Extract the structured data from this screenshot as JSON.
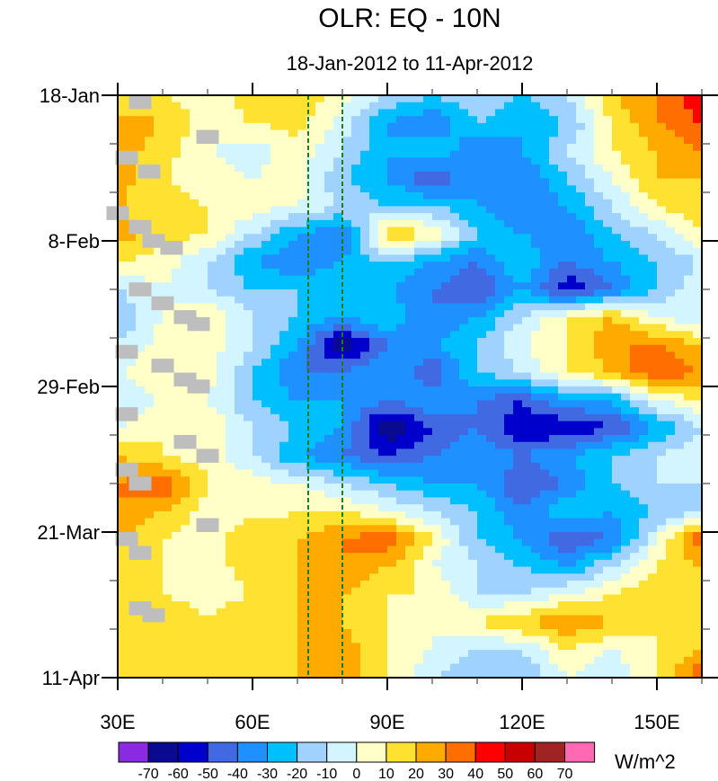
{
  "chart_data": {
    "type": "heatmap",
    "title": "OLR: EQ - 10N",
    "subtitle": "18-Jan-2012 to 11-Apr-2012",
    "units": "W/m^2",
    "x_range": [
      30,
      160
    ],
    "y_range_days": [
      0,
      84
    ],
    "x_ticks": [
      {
        "value": 30,
        "label": "30E"
      },
      {
        "value": 60,
        "label": "60E"
      },
      {
        "value": 90,
        "label": "90E"
      },
      {
        "value": 120,
        "label": "120E"
      },
      {
        "value": 150,
        "label": "150E"
      }
    ],
    "y_ticks": [
      {
        "day": 0,
        "label": "18-Jan"
      },
      {
        "day": 21,
        "label": "8-Feb"
      },
      {
        "day": 42,
        "label": "29-Feb"
      },
      {
        "day": 63,
        "label": "21-Mar"
      },
      {
        "day": 84,
        "label": "11-Apr"
      }
    ],
    "reference_lines_lon": [
      72.4,
      80
    ],
    "lons": [
      30,
      40,
      50,
      60,
      70,
      80,
      90,
      100,
      110,
      120,
      130,
      140,
      150,
      160
    ],
    "days": [
      0,
      4,
      8,
      12,
      16,
      20,
      24,
      28,
      32,
      36,
      40,
      44,
      48,
      52,
      56,
      60,
      64,
      68,
      72,
      76,
      80,
      84
    ],
    "values": [
      [
        10,
        10,
        5,
        15,
        20,
        5,
        -10,
        -20,
        -10,
        -20,
        -10,
        20,
        30,
        50
      ],
      [
        25,
        20,
        5,
        10,
        15,
        -5,
        -30,
        -40,
        -20,
        -30,
        -20,
        10,
        30,
        40
      ],
      [
        25,
        15,
        0,
        -5,
        5,
        -10,
        -30,
        -20,
        -40,
        -30,
        -10,
        10,
        20,
        30
      ],
      [
        25,
        10,
        5,
        0,
        5,
        -20,
        -30,
        -50,
        -30,
        -40,
        -20,
        0,
        20,
        20
      ],
      [
        20,
        15,
        10,
        5,
        0,
        -10,
        -20,
        -20,
        -30,
        -40,
        -30,
        -10,
        10,
        20
      ],
      [
        25,
        15,
        10,
        -10,
        -30,
        -40,
        20,
        10,
        -20,
        -30,
        -40,
        -20,
        -10,
        10
      ],
      [
        10,
        5,
        -10,
        -30,
        -40,
        -30,
        -20,
        -30,
        -40,
        -20,
        -40,
        -30,
        -20,
        -10
      ],
      [
        -10,
        0,
        -10,
        -20,
        -20,
        -20,
        -30,
        -40,
        -50,
        -30,
        -60,
        -40,
        -20,
        0
      ],
      [
        -20,
        0,
        10,
        -10,
        -20,
        -30,
        -20,
        -40,
        -30,
        -10,
        10,
        20,
        0,
        -10
      ],
      [
        -10,
        5,
        5,
        -10,
        -30,
        -70,
        -40,
        -30,
        -20,
        0,
        10,
        30,
        30,
        20
      ],
      [
        0,
        10,
        5,
        -20,
        -40,
        -40,
        -30,
        -50,
        -20,
        -10,
        10,
        20,
        40,
        30
      ],
      [
        -10,
        0,
        0,
        -20,
        -30,
        -30,
        -40,
        -30,
        -40,
        -50,
        -30,
        -30,
        0,
        10
      ],
      [
        0,
        10,
        10,
        -10,
        -20,
        -30,
        -70,
        -50,
        -40,
        -60,
        -60,
        -50,
        -30,
        -10
      ],
      [
        20,
        10,
        5,
        -10,
        -30,
        -40,
        -50,
        -40,
        -30,
        -40,
        -30,
        -20,
        -10,
        0
      ],
      [
        30,
        40,
        10,
        5,
        0,
        -10,
        -20,
        -30,
        -30,
        -50,
        -40,
        -20,
        -10,
        -10
      ],
      [
        30,
        20,
        5,
        5,
        10,
        10,
        0,
        -10,
        -20,
        -40,
        -20,
        -30,
        -20,
        -10
      ],
      [
        20,
        10,
        5,
        20,
        20,
        30,
        40,
        10,
        -20,
        -30,
        -50,
        -40,
        0,
        40
      ],
      [
        20,
        10,
        5,
        15,
        20,
        30,
        20,
        0,
        -10,
        -20,
        -30,
        -10,
        10,
        20
      ],
      [
        20,
        10,
        5,
        10,
        20,
        20,
        10,
        10,
        -10,
        -10,
        0,
        10,
        20,
        20
      ],
      [
        20,
        20,
        10,
        20,
        20,
        20,
        10,
        0,
        10,
        20,
        30,
        20,
        10,
        10
      ],
      [
        10,
        15,
        10,
        15,
        20,
        25,
        10,
        0,
        -10,
        -10,
        10,
        0,
        10,
        20
      ],
      [
        10,
        10,
        10,
        15,
        20,
        25,
        10,
        -10,
        -20,
        -20,
        0,
        -10,
        10,
        40
      ]
    ],
    "missing_points": [
      [
        35,
        1
      ],
      [
        50,
        6
      ],
      [
        32,
        9
      ],
      [
        37,
        11
      ],
      [
        30,
        17
      ],
      [
        35,
        19
      ],
      [
        38,
        21
      ],
      [
        42,
        22
      ],
      [
        35,
        28
      ],
      [
        40,
        30
      ],
      [
        45,
        32
      ],
      [
        48,
        33
      ],
      [
        32,
        37
      ],
      [
        40,
        39
      ],
      [
        45,
        41
      ],
      [
        48,
        42
      ],
      [
        32,
        46
      ],
      [
        45,
        50
      ],
      [
        50,
        52
      ],
      [
        32,
        54
      ],
      [
        35,
        56
      ],
      [
        50,
        62
      ],
      [
        32,
        64
      ],
      [
        35,
        66
      ],
      [
        35,
        74
      ],
      [
        38,
        75
      ]
    ],
    "colorbar": {
      "labels": [
        "-70",
        "-60",
        "-50",
        "-40",
        "-30",
        "-20",
        "-10",
        "0",
        "10",
        "20",
        "30",
        "40",
        "50",
        "60",
        "70"
      ],
      "levels": [
        -70,
        -60,
        -50,
        -40,
        -30,
        -20,
        -10,
        0,
        10,
        20,
        30,
        40,
        50,
        60,
        70
      ],
      "colors": [
        "#8a2be2",
        "#0a0a90",
        "#0000cd",
        "#4169e1",
        "#1e90ff",
        "#00bfff",
        "#a0d2ff",
        "#d2f5ff",
        "#ffffc8",
        "#ffe132",
        "#ffaa00",
        "#ff6e00",
        "#ff0000",
        "#c80000",
        "#a02323",
        "#ff69b4"
      ]
    },
    "missing_color": "#bebebe",
    "reference_line_color": "#1e7a1e"
  }
}
